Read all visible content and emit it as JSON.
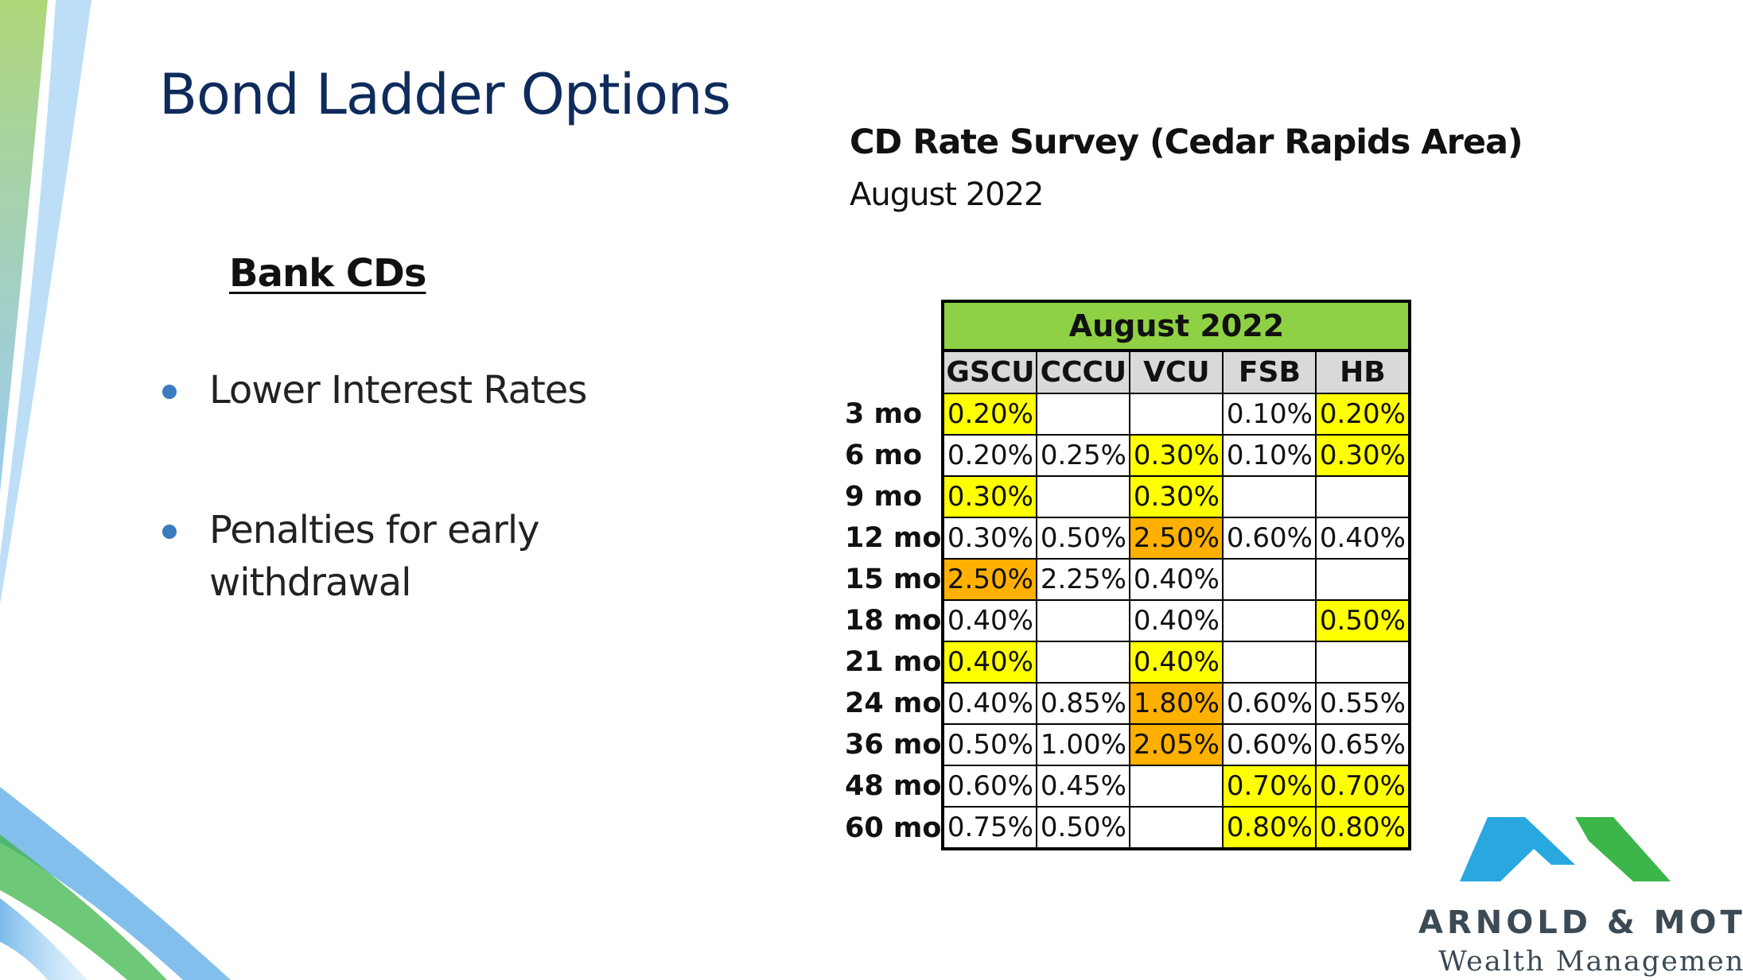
{
  "slide": {
    "title": "Bond Ladder Options",
    "section_heading": "Bank CDs",
    "bullets": [
      "Lower Interest Rates",
      "Penalties for early withdrawal"
    ]
  },
  "survey": {
    "title": "CD Rate Survey (Cedar Rapids Area)",
    "subtitle": "August 2022"
  },
  "table": {
    "banner": "August 2022",
    "columns": [
      "GSCU",
      "CCCU",
      "VCU",
      "FSB",
      "HB"
    ],
    "rows": [
      {
        "term": "3 mo",
        "cells": [
          {
            "v": "0.20%",
            "h": "yellow"
          },
          {
            "v": "",
            "h": ""
          },
          {
            "v": "",
            "h": ""
          },
          {
            "v": "0.10%",
            "h": ""
          },
          {
            "v": "0.20%",
            "h": "yellow"
          }
        ]
      },
      {
        "term": "6 mo",
        "cells": [
          {
            "v": "0.20%",
            "h": ""
          },
          {
            "v": "0.25%",
            "h": ""
          },
          {
            "v": "0.30%",
            "h": "yellow"
          },
          {
            "v": "0.10%",
            "h": ""
          },
          {
            "v": "0.30%",
            "h": "yellow"
          }
        ]
      },
      {
        "term": "9 mo",
        "cells": [
          {
            "v": "0.30%",
            "h": "yellow"
          },
          {
            "v": "",
            "h": ""
          },
          {
            "v": "0.30%",
            "h": "yellow"
          },
          {
            "v": "",
            "h": ""
          },
          {
            "v": "",
            "h": ""
          }
        ]
      },
      {
        "term": "12 mo",
        "cells": [
          {
            "v": "0.30%",
            "h": ""
          },
          {
            "v": "0.50%",
            "h": ""
          },
          {
            "v": "2.50%",
            "h": "orange"
          },
          {
            "v": "0.60%",
            "h": ""
          },
          {
            "v": "0.40%",
            "h": ""
          }
        ]
      },
      {
        "term": "15 mo",
        "cells": [
          {
            "v": "2.50%",
            "h": "orange"
          },
          {
            "v": "2.25%",
            "h": ""
          },
          {
            "v": "0.40%",
            "h": ""
          },
          {
            "v": "",
            "h": ""
          },
          {
            "v": "",
            "h": ""
          }
        ]
      },
      {
        "term": "18 mo",
        "cells": [
          {
            "v": "0.40%",
            "h": ""
          },
          {
            "v": "",
            "h": ""
          },
          {
            "v": "0.40%",
            "h": ""
          },
          {
            "v": "",
            "h": ""
          },
          {
            "v": "0.50%",
            "h": "yellow"
          }
        ]
      },
      {
        "term": "21 mo",
        "cells": [
          {
            "v": "0.40%",
            "h": "yellow"
          },
          {
            "v": "",
            "h": ""
          },
          {
            "v": "0.40%",
            "h": "yellow"
          },
          {
            "v": "",
            "h": ""
          },
          {
            "v": "",
            "h": ""
          }
        ]
      },
      {
        "term": "24 mo",
        "cells": [
          {
            "v": "0.40%",
            "h": ""
          },
          {
            "v": "0.85%",
            "h": ""
          },
          {
            "v": "1.80%",
            "h": "orange"
          },
          {
            "v": "0.60%",
            "h": ""
          },
          {
            "v": "0.55%",
            "h": ""
          }
        ]
      },
      {
        "term": "36 mo",
        "cells": [
          {
            "v": "0.50%",
            "h": ""
          },
          {
            "v": "1.00%",
            "h": ""
          },
          {
            "v": "2.05%",
            "h": "orange"
          },
          {
            "v": "0.60%",
            "h": ""
          },
          {
            "v": "0.65%",
            "h": ""
          }
        ]
      },
      {
        "term": "48 mo",
        "cells": [
          {
            "v": "0.60%",
            "h": ""
          },
          {
            "v": "0.45%",
            "h": ""
          },
          {
            "v": "",
            "h": ""
          },
          {
            "v": "0.70%",
            "h": "yellow"
          },
          {
            "v": "0.70%",
            "h": "yellow"
          }
        ]
      },
      {
        "term": "60 mo",
        "cells": [
          {
            "v": "0.75%",
            "h": ""
          },
          {
            "v": "0.50%",
            "h": ""
          },
          {
            "v": "",
            "h": ""
          },
          {
            "v": "0.80%",
            "h": "yellow"
          },
          {
            "v": "0.80%",
            "h": "yellow"
          }
        ]
      }
    ]
  },
  "highlight_colors": {
    "yellow": "#ffff00",
    "orange": "#ffb000"
  },
  "logo": {
    "name": "ARNOLD & MOTE",
    "tagline": "Wealth Management",
    "colors": {
      "blue": "#29a8e0",
      "green": "#3cb54a"
    }
  },
  "colors": {
    "title": "#0f2b5c",
    "bullet": "#3a7cbf",
    "banner": "#8fd144",
    "header_gray": "#d9d9d9"
  }
}
